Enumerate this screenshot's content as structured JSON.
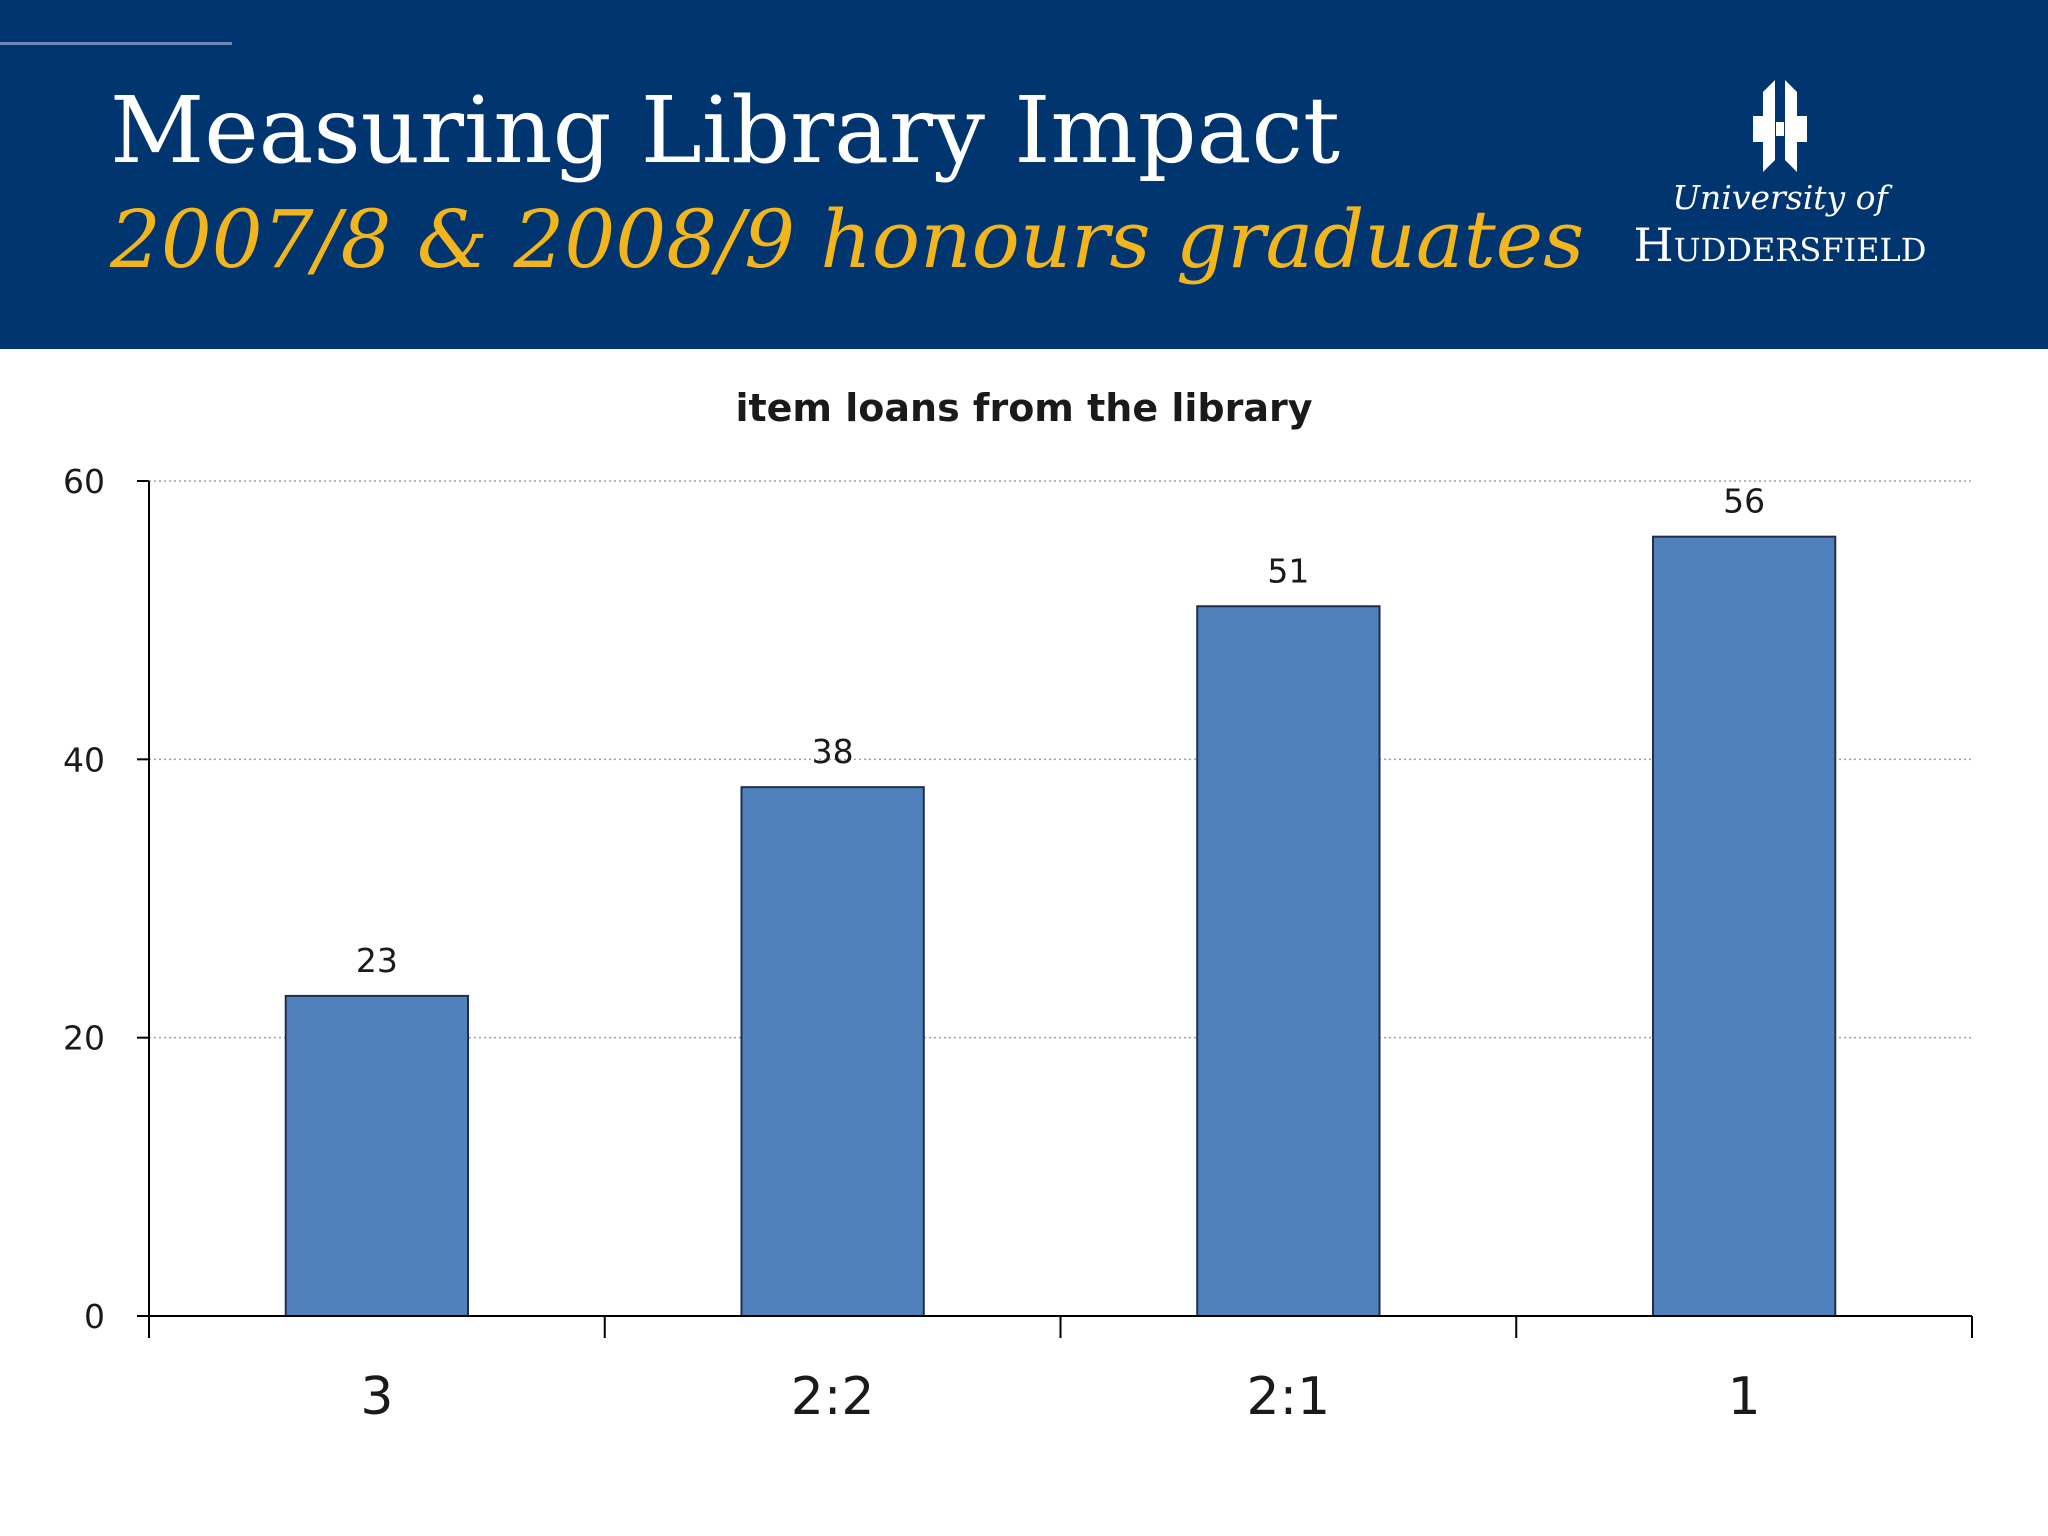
{
  "slide": {
    "title": "Measuring Library Impact",
    "subtitle": "2007/8 & 2008/9 honours graduates",
    "logo": {
      "line1": "University of",
      "line2": "Huddersfield",
      "icon": "university-crest-icon"
    }
  },
  "colors": {
    "header_background": "#003570",
    "subtitle": "#f2b51d",
    "bar_fill": "#4f81bd",
    "bar_stroke": "#1f2f4a"
  },
  "chart_data": {
    "type": "bar",
    "title": "item loans from the library",
    "xlabel": "",
    "ylabel": "",
    "categories": [
      "3",
      "2:2",
      "2:1",
      "1"
    ],
    "values": [
      23,
      38,
      51,
      56
    ],
    "data_labels": [
      "23",
      "38",
      "51",
      "56"
    ],
    "ylim": [
      0,
      60
    ],
    "yticks": [
      0,
      20,
      40,
      60
    ],
    "ytick_labels": [
      "0",
      "20",
      "40",
      "60"
    ],
    "grid": true,
    "legend": "none"
  }
}
